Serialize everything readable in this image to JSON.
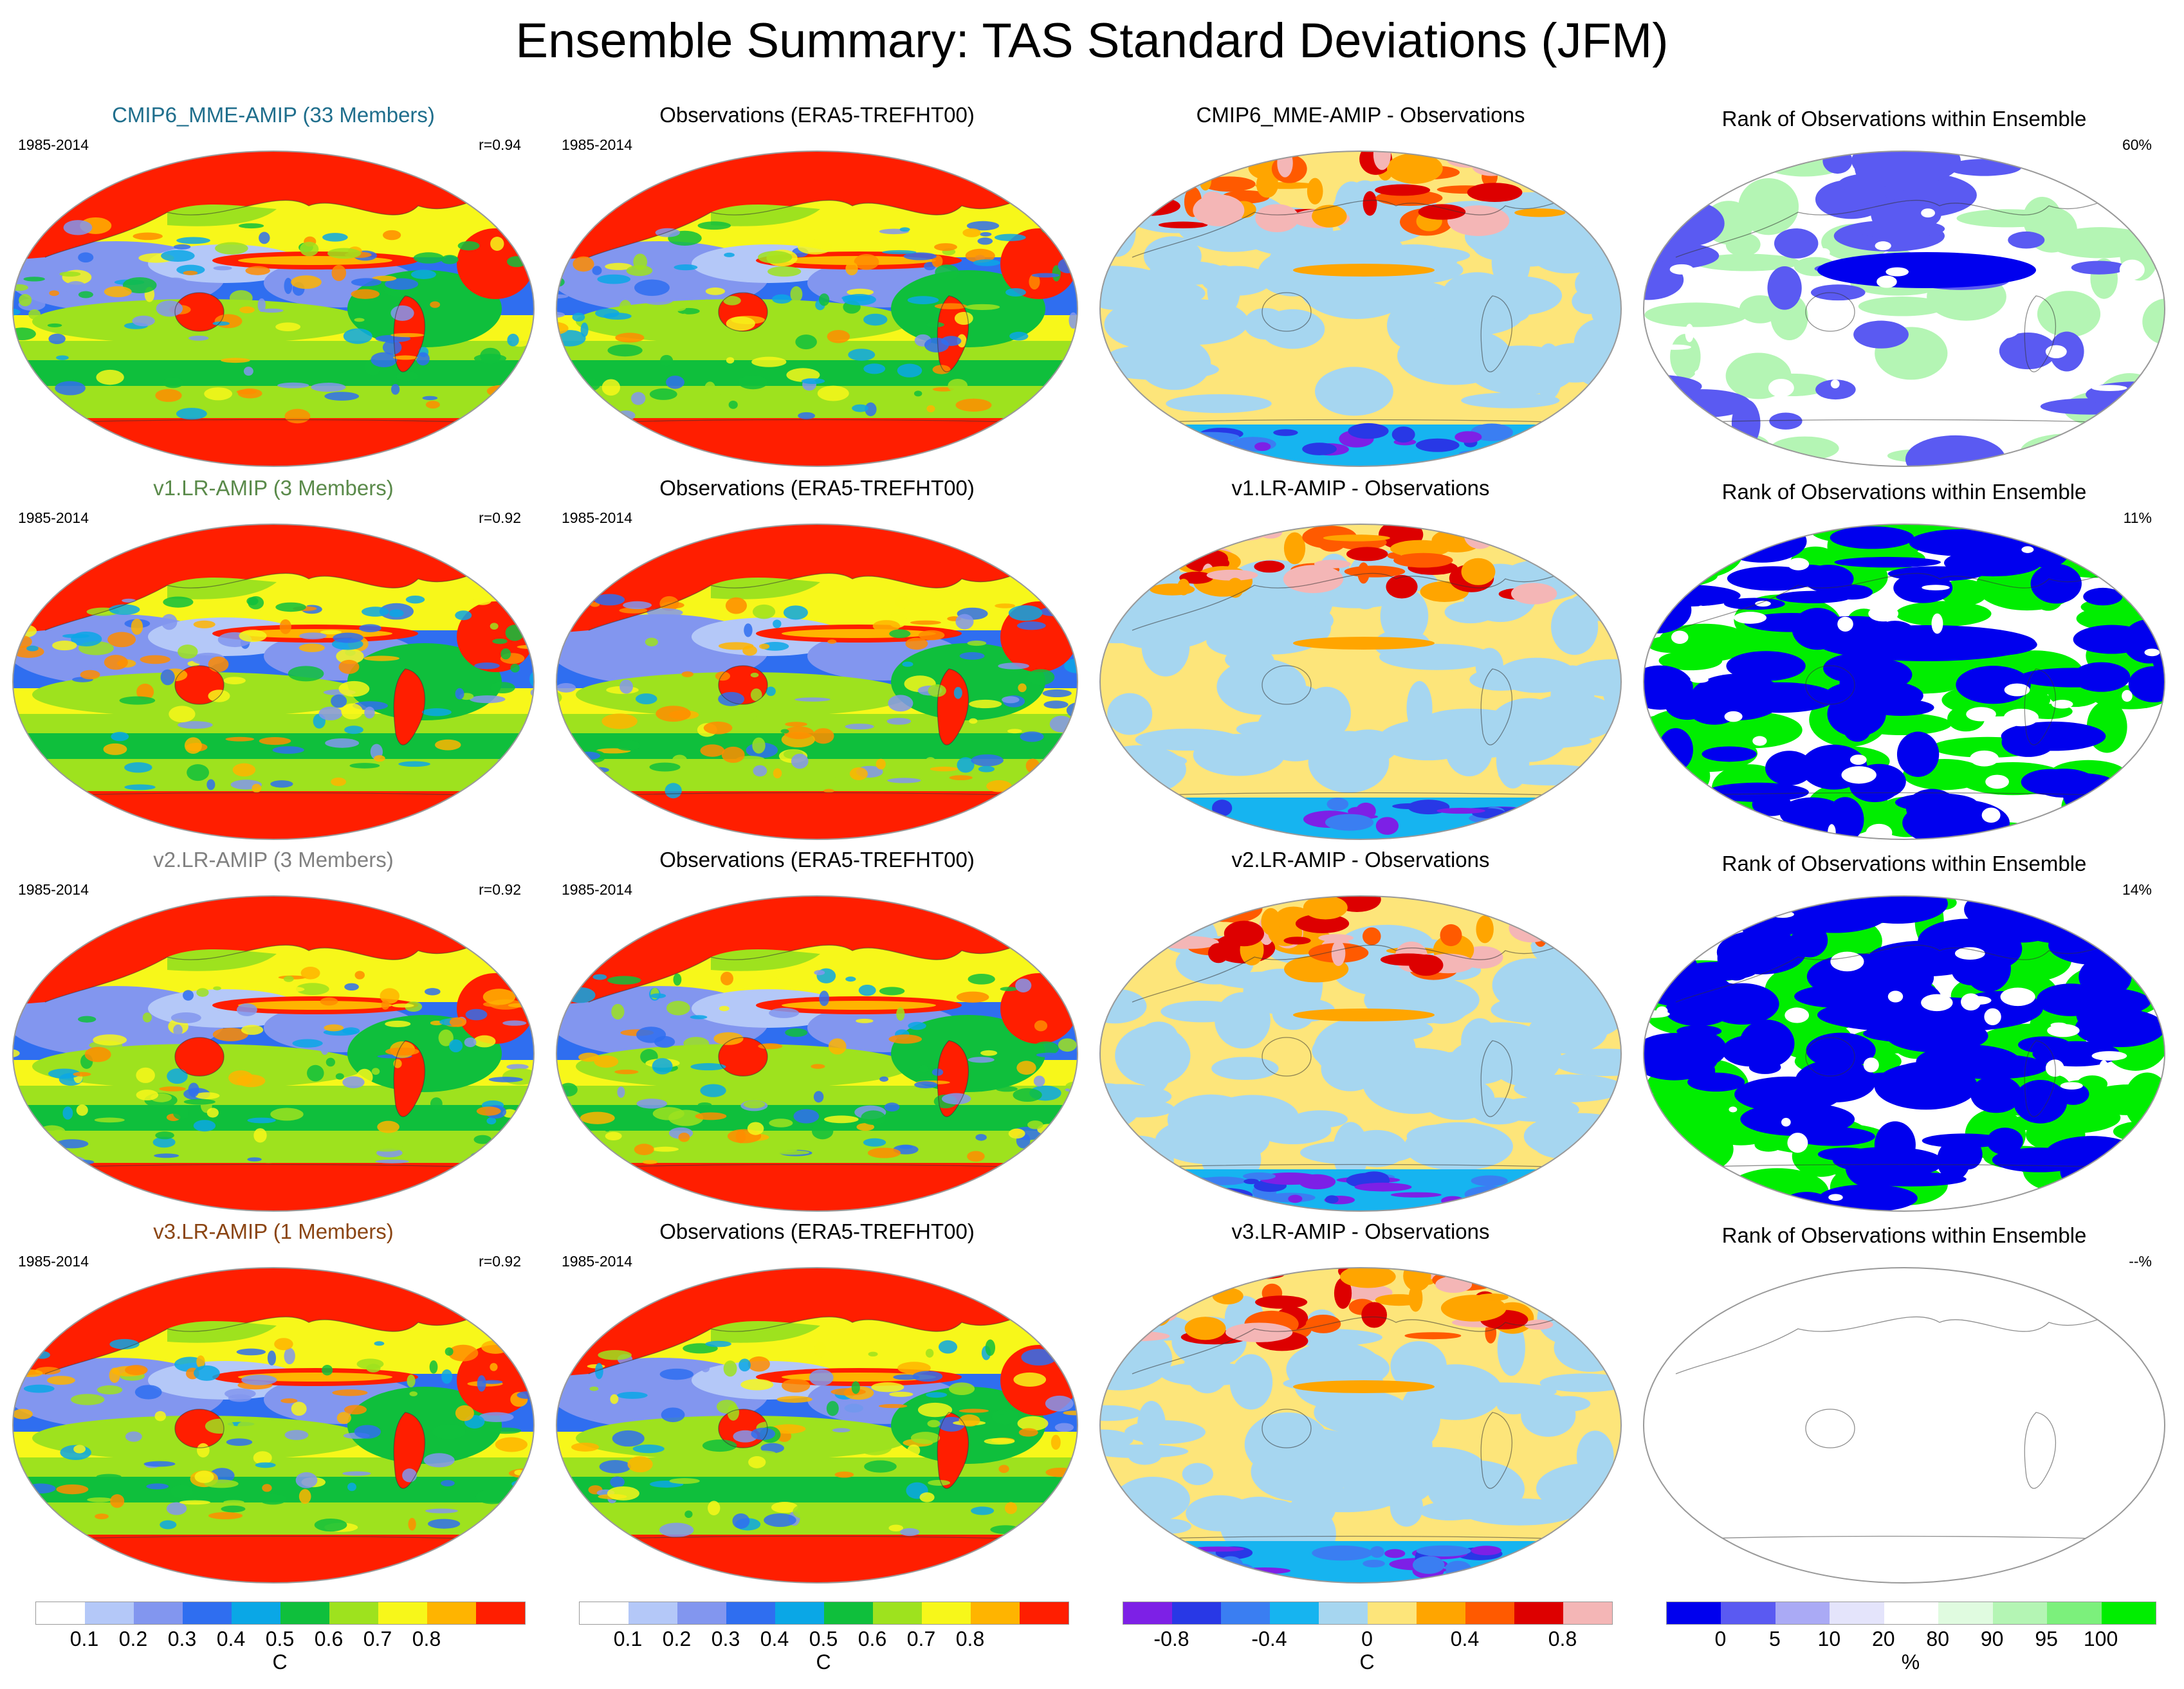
{
  "title": "Ensemble Summary: TAS Standard Deviations (JFM)",
  "colors": {
    "std_scale": [
      "#ffffff",
      "#b4c8f8",
      "#8296ef",
      "#2f6ef0",
      "#0aa7e6",
      "#0fbf3c",
      "#9ee21e",
      "#f7f71a",
      "#ffb400",
      "#ff8c00",
      "#ff1e00"
    ],
    "diff_scale": [
      "#7d20e6",
      "#2838e6",
      "#3a7ef2",
      "#16b4f0",
      "#a6d6f0",
      "#fde57a",
      "#ffa500",
      "#ff5a00",
      "#dd0000",
      "#f4b6b6"
    ],
    "rank_scale": [
      "#0000ee",
      "#5a5af2",
      "#aaaaf5",
      "#e4e4fb",
      "#ffffff",
      "#e0fbe0",
      "#b4f5b4",
      "#7cf07c",
      "#00ee00"
    ],
    "model_title": [
      "#1f6e8c",
      "#5a8a4a",
      "#808080",
      "#8b4513"
    ]
  },
  "rows": [
    {
      "model": {
        "title": "CMIP6_MME-AMIP (33 Members)",
        "period": "1985-2014",
        "corr": "r=0.94"
      },
      "obs": {
        "title": "Observations (ERA5-TREFHT00)",
        "period": "1985-2014"
      },
      "diff": {
        "title": "CMIP6_MME-AMIP - Observations"
      },
      "rank": {
        "title": "Rank of Observations within Ensemble",
        "pct": "60%"
      }
    },
    {
      "model": {
        "title": "v1.LR-AMIP (3 Members)",
        "period": "1985-2014",
        "corr": "r=0.92"
      },
      "obs": {
        "title": "Observations (ERA5-TREFHT00)",
        "period": "1985-2014"
      },
      "diff": {
        "title": "v1.LR-AMIP - Observations"
      },
      "rank": {
        "title": "Rank of Observations within Ensemble",
        "pct": "11%"
      }
    },
    {
      "model": {
        "title": "v2.LR-AMIP (3 Members)",
        "period": "1985-2014",
        "corr": "r=0.92"
      },
      "obs": {
        "title": "Observations (ERA5-TREFHT00)",
        "period": "1985-2014"
      },
      "diff": {
        "title": "v2.LR-AMIP - Observations"
      },
      "rank": {
        "title": "Rank of Observations within Ensemble",
        "pct": "14%"
      }
    },
    {
      "model": {
        "title": "v3.LR-AMIP (1 Members)",
        "period": "1985-2014",
        "corr": "r=0.92"
      },
      "obs": {
        "title": "Observations (ERA5-TREFHT00)",
        "period": "1985-2014"
      },
      "diff": {
        "title": "v3.LR-AMIP - Observations"
      },
      "rank": {
        "title": "Rank of Observations within Ensemble",
        "pct": "--%"
      }
    }
  ],
  "colorbars": [
    {
      "unit": "C",
      "ticks": [
        "0.1",
        "0.2",
        "0.3",
        "0.4",
        "0.5",
        "0.6",
        "0.7",
        "0.8"
      ]
    },
    {
      "unit": "C",
      "ticks": [
        "0.1",
        "0.2",
        "0.3",
        "0.4",
        "0.5",
        "0.6",
        "0.7",
        "0.8"
      ]
    },
    {
      "unit": "C",
      "ticks": [
        "-0.8",
        "-0.4",
        "0",
        "0.4",
        "0.8"
      ]
    },
    {
      "unit": "%",
      "ticks": [
        "0",
        "5",
        "10",
        "20",
        "80",
        "90",
        "95",
        "100"
      ]
    }
  ]
}
